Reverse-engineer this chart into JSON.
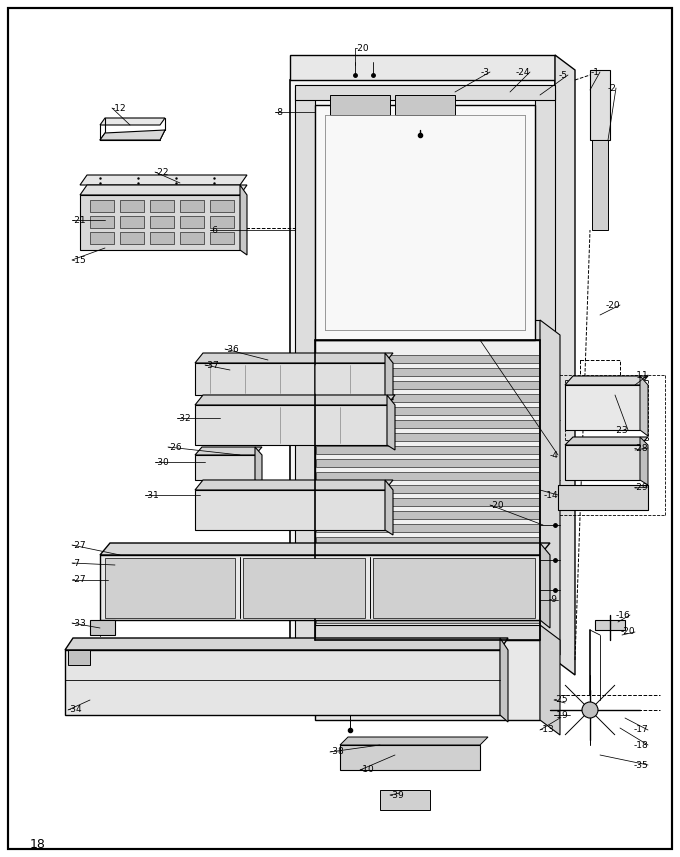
{
  "page_number": "18",
  "bg_color": "#ffffff",
  "line_color": "#000000",
  "fig_width": 6.8,
  "fig_height": 8.57,
  "dpi": 100
}
